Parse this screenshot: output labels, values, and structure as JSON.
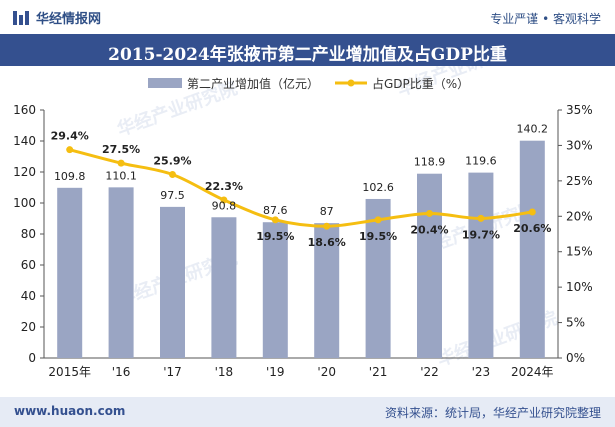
{
  "header": {
    "brand": "华经情报网",
    "slogan": "专业严谨 • 客观科学"
  },
  "footer": {
    "website": "www.huaon.com",
    "source": "资料来源：统计局，华经产业研究院整理"
  },
  "watermark": "华经产业研究院",
  "colors": {
    "bar": "#9aa5c3",
    "line": "#f5be11",
    "titlebar": "#34508f",
    "footer": "#e6ebf5"
  },
  "chart_data": {
    "type": "bar",
    "title": "2015-2024年张掖市第二产业增加值及占GDP比重",
    "categories": [
      "2015年",
      "'16",
      "'17",
      "'18",
      "'19",
      "'20",
      "'21",
      "'22",
      "'23",
      "2024年"
    ],
    "series": [
      {
        "name": "第二产业增加值（亿元）",
        "type": "bar",
        "axis": "left",
        "values": [
          109.8,
          110.1,
          97.5,
          90.8,
          87.6,
          87,
          102.6,
          118.9,
          119.6,
          140.2
        ],
        "labels": [
          "109.8",
          "110.1",
          "97.5",
          "90.8",
          "87.6",
          "87",
          "102.6",
          "118.9",
          "119.6",
          "140.2"
        ]
      },
      {
        "name": "占GDP比重（%）",
        "type": "line",
        "axis": "right",
        "values": [
          29.4,
          27.5,
          25.9,
          22.3,
          19.5,
          18.6,
          19.5,
          20.4,
          19.7,
          20.6
        ],
        "labels": [
          "29.4%",
          "27.5%",
          "25.9%",
          "22.3%",
          "19.5%",
          "18.6%",
          "19.5%",
          "20.4%",
          "19.7%",
          "20.6%"
        ]
      }
    ],
    "y_left": {
      "min": 0,
      "max": 160,
      "ticks": [
        "0",
        "20",
        "40",
        "60",
        "80",
        "100",
        "120",
        "140",
        "160"
      ]
    },
    "y_right": {
      "min": 0,
      "max": 35,
      "ticks": [
        "0%",
        "5%",
        "10%",
        "15%",
        "20%",
        "25%",
        "30%",
        "35%"
      ]
    },
    "legend_position": "top-center",
    "grid": false
  }
}
